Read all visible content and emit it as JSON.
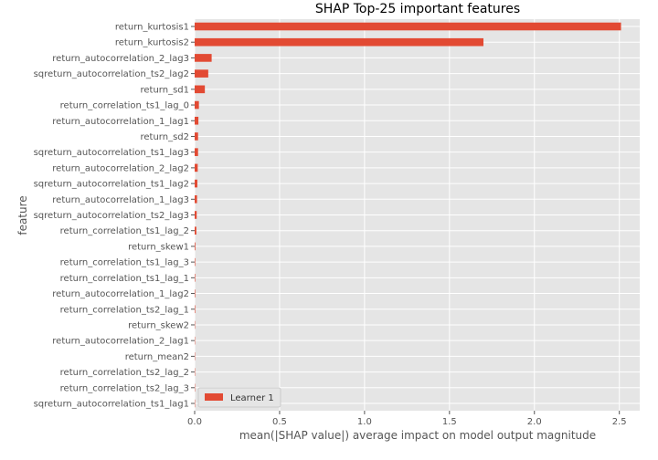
{
  "chart_data": {
    "type": "bar",
    "orientation": "horizontal",
    "title": "SHAP Top-25 important features",
    "xlabel": "mean(|SHAP value|) average impact on model output magnitude",
    "ylabel": "feature",
    "xlim": [
      0,
      2.62
    ],
    "xticks": [
      0.0,
      0.5,
      1.0,
      1.5,
      2.0,
      2.5
    ],
    "xtick_labels": [
      "0.0",
      "0.5",
      "1.0",
      "1.5",
      "2.0",
      "2.5"
    ],
    "grid": true,
    "legend_position": "bottom-left",
    "categories": [
      "return_kurtosis1",
      "return_kurtosis2",
      "return_autocorrelation_2_lag3",
      "sqreturn_autocorrelation_ts2_lag2",
      "return_sd1",
      "return_correlation_ts1_lag_0",
      "return_autocorrelation_1_lag1",
      "return_sd2",
      "sqreturn_autocorrelation_ts1_lag3",
      "return_autocorrelation_2_lag2",
      "sqreturn_autocorrelation_ts1_lag2",
      "return_autocorrelation_1_lag3",
      "sqreturn_autocorrelation_ts2_lag3",
      "return_correlation_ts1_lag_2",
      "return_skew1",
      "return_correlation_ts1_lag_3",
      "return_correlation_ts1_lag_1",
      "return_autocorrelation_1_lag2",
      "return_correlation_ts2_lag_1",
      "return_skew2",
      "return_autocorrelation_2_lag1",
      "return_mean2",
      "return_correlation_ts2_lag_2",
      "return_correlation_ts2_lag_3",
      "sqreturn_autocorrelation_ts1_lag1"
    ],
    "series": [
      {
        "name": "Learner 1",
        "color": "#e24a33",
        "values": [
          2.51,
          1.7,
          0.1,
          0.08,
          0.06,
          0.025,
          0.022,
          0.02,
          0.02,
          0.018,
          0.016,
          0.014,
          0.012,
          0.01,
          0.004,
          0.003,
          0.003,
          0.003,
          0.003,
          0.002,
          0.002,
          0.002,
          0.002,
          0.002,
          0.002
        ]
      }
    ]
  }
}
